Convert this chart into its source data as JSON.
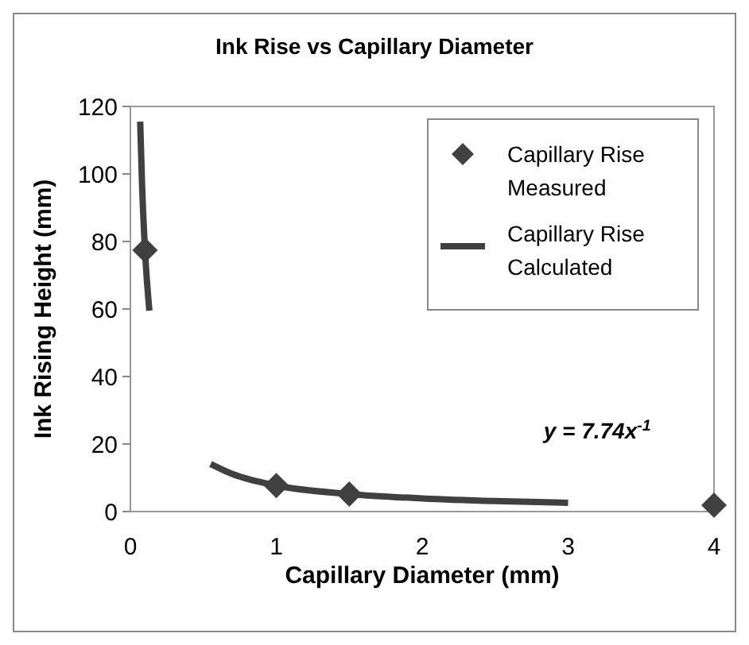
{
  "chart_data": {
    "type": "scatter",
    "title": "Ink Rise vs Capillary Diameter",
    "xlabel": "Capillary Diameter (mm)",
    "ylabel": "Ink Rising Height (mm)",
    "xlim": [
      0,
      4
    ],
    "xticks": [
      0,
      1,
      2,
      3,
      4
    ],
    "ylim": [
      0,
      120
    ],
    "yticks": [
      0,
      20,
      40,
      60,
      80,
      100,
      120
    ],
    "grid": false,
    "legend": "top right",
    "series": [
      {
        "name": "Capillary Rise Measured",
        "marker": "diamond",
        "color": "#404040",
        "x": [
          0.1,
          1,
          1.5,
          4
        ],
        "values": [
          77.4,
          7.7,
          5.2,
          1.9
        ]
      },
      {
        "name": "Capillary Rise Calculated",
        "type": "line",
        "line_style": "solid",
        "color": "#404040",
        "x": [
          0.067,
          0.08,
          0.1,
          0.13,
          0.3,
          0.55,
          0.7,
          1,
          1.5,
          2,
          2.5,
          3
        ],
        "values": [
          115.5,
          96.8,
          77.4,
          59.5,
          null,
          14.1,
          11.1,
          7.7,
          5.2,
          3.9,
          3.1,
          2.6
        ]
      }
    ],
    "annotations": [
      "y = 7.74x$^{-1}$"
    ]
  }
}
